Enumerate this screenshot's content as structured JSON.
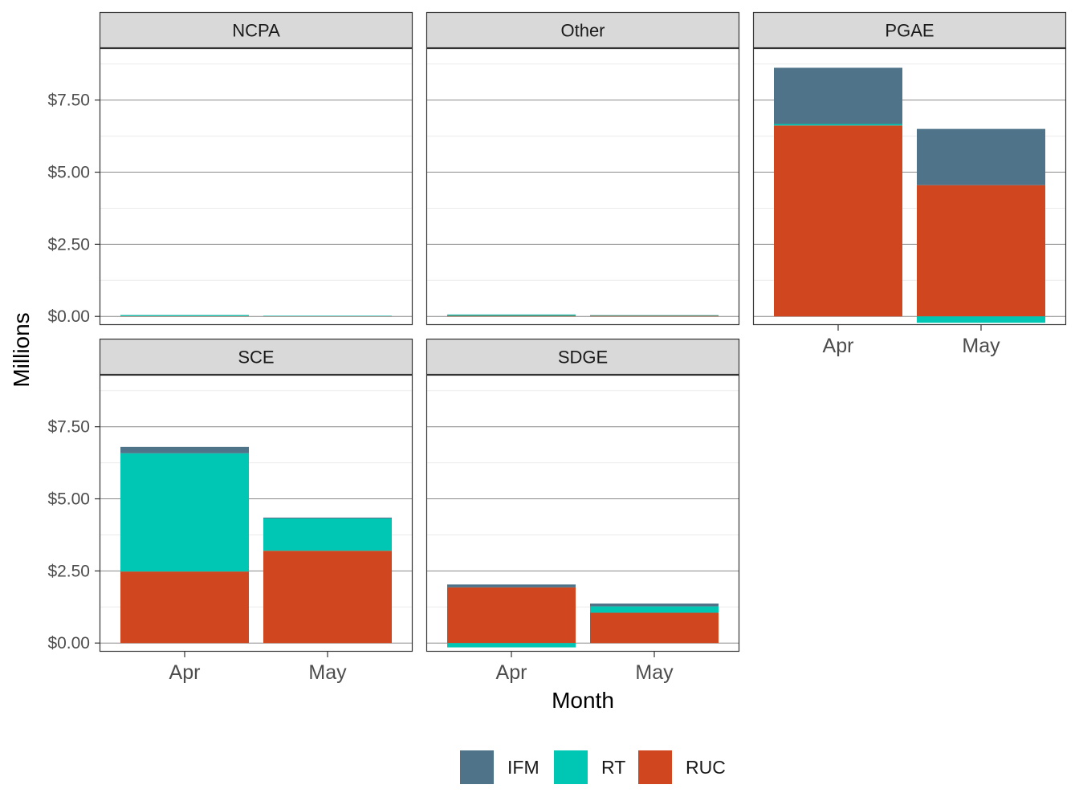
{
  "chart_data": {
    "type": "bar",
    "stacked": true,
    "facet_layout": {
      "columns": 3,
      "rows": 2
    },
    "xlabel": "Month",
    "ylabel": "Millions",
    "categories": [
      "Apr",
      "May"
    ],
    "ylim": [
      -0.3,
      9.3
    ],
    "y_ticks": [
      0,
      2.5,
      5,
      7.5
    ],
    "y_tick_labels": [
      "$0.00",
      "$2.50",
      "$5.00",
      "$7.50"
    ],
    "grid": true,
    "legend_position": "bottom",
    "legend": [
      {
        "name": "IFM",
        "color": "#4f7489"
      },
      {
        "name": "RT",
        "color": "#00c7b3"
      },
      {
        "name": "RUC",
        "color": "#d0461f"
      }
    ],
    "stack_order": [
      "RUC",
      "RT",
      "IFM"
    ],
    "panels": [
      {
        "label": "NCPA",
        "series": {
          "IFM": [
            0.005,
            0.003
          ],
          "RT": [
            0.035,
            0.015
          ],
          "RUC": [
            0.01,
            0.005
          ]
        }
      },
      {
        "label": "Other",
        "series": {
          "IFM": [
            0.005,
            0.005
          ],
          "RT": [
            0.04,
            0.02
          ],
          "RUC": [
            0.02,
            0.02
          ]
        }
      },
      {
        "label": "PGAE",
        "series": {
          "IFM": [
            1.95,
            1.95
          ],
          "RT": [
            0.05,
            -0.22
          ],
          "RUC": [
            6.62,
            4.55
          ]
        }
      },
      {
        "label": "SCE",
        "series": {
          "IFM": [
            0.22,
            0.03
          ],
          "RT": [
            4.1,
            1.12
          ],
          "RUC": [
            2.48,
            3.2
          ]
        }
      },
      {
        "label": "SDGE",
        "series": {
          "IFM": [
            0.1,
            0.1
          ],
          "RT": [
            -0.15,
            0.22
          ],
          "RUC": [
            1.93,
            1.05
          ]
        }
      }
    ]
  }
}
